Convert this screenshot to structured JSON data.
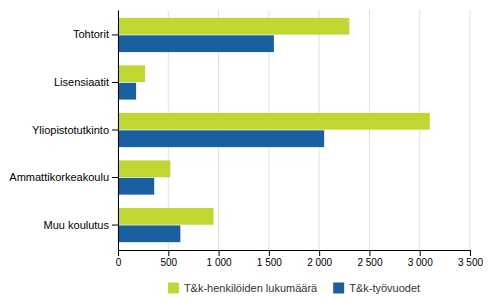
{
  "chart_data": {
    "type": "bar",
    "orientation": "horizontal",
    "categories": [
      "Tohtorit",
      "Lisensiaatit",
      "Yliopistotutkinto",
      "Ammattikorkeakoulu",
      "Muu koulutus"
    ],
    "series": [
      {
        "name": "T&k-henkilöiden lukumäärä",
        "color": "#bfd730",
        "values": [
          2300,
          270,
          3100,
          520,
          950
        ]
      },
      {
        "name": "T&k-työvuodet",
        "color": "#1a5fa0",
        "values": [
          1550,
          180,
          2050,
          360,
          620
        ]
      }
    ],
    "xlim": [
      0,
      3500
    ],
    "xticks": [
      0,
      500,
      {
        "value": 1000,
        "label": "1 000"
      },
      {
        "value": 1500,
        "label": "1 500"
      },
      {
        "value": 2000,
        "label": "2 000"
      },
      {
        "value": 2500,
        "label": "2 500"
      },
      {
        "value": 3000,
        "label": "3 000"
      },
      {
        "value": 3500,
        "label": "3 500"
      }
    ],
    "grid": true,
    "legend": "bottom"
  }
}
